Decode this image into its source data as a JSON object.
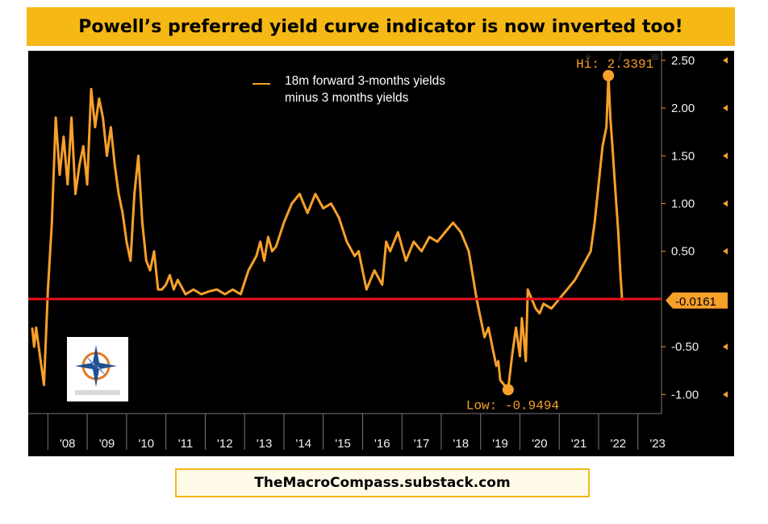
{
  "title": "Powell’s preferred yield curve indicator is now inverted too!",
  "footer": "TheMacroCompass.substack.com",
  "colors": {
    "banner": "#f5b815",
    "line": "#f7a02a",
    "zero_line": "#e8101c",
    "background": "#000000"
  },
  "chart_data": {
    "type": "line",
    "title": "Powell’s preferred yield curve indicator is now inverted too!",
    "xlabel": "",
    "ylabel": "",
    "xlim": [
      2007.5,
      2023.6
    ],
    "ylim": [
      -1.2,
      2.6
    ],
    "x_tick_labels": [
      "'08",
      "'09",
      "'10",
      "'11",
      "'12",
      "'13",
      "'14",
      "'15",
      "'16",
      "'17",
      "'18",
      "'19",
      "'20",
      "'21",
      "'22",
      "'23"
    ],
    "y_ticks": [
      2.5,
      2.0,
      1.5,
      1.0,
      0.5,
      -0.5,
      -1.0
    ],
    "y_tick_labels": [
      "2.50",
      "2.00",
      "1.50",
      "1.00",
      "0.50",
      "-0.50",
      "-1.00"
    ],
    "last_value_label": "-0.0161",
    "hi_label": "Hi: 2.3391",
    "low_label": "Low: -0.9494",
    "horizontal_line": {
      "y": 0,
      "color": "#e8101c"
    },
    "grid": false,
    "legend_position": "top-left",
    "series": [
      {
        "name": "18m forward 3-months yields\nminus 3 months yields",
        "color": "#f7a02a",
        "x": [
          2007.6,
          2007.65,
          2007.7,
          2007.8,
          2007.9,
          2008.0,
          2008.1,
          2008.2,
          2008.3,
          2008.4,
          2008.5,
          2008.6,
          2008.7,
          2008.8,
          2008.9,
          2009.0,
          2009.1,
          2009.2,
          2009.3,
          2009.4,
          2009.5,
          2009.6,
          2009.7,
          2009.8,
          2009.9,
          2010.0,
          2010.1,
          2010.2,
          2010.3,
          2010.4,
          2010.5,
          2010.6,
          2010.7,
          2010.8,
          2010.9,
          2011.0,
          2011.1,
          2011.2,
          2011.3,
          2011.5,
          2011.7,
          2011.9,
          2012.1,
          2012.3,
          2012.5,
          2012.7,
          2012.9,
          2013.1,
          2013.3,
          2013.4,
          2013.5,
          2013.6,
          2013.7,
          2013.8,
          2014.0,
          2014.2,
          2014.4,
          2014.6,
          2014.8,
          2015.0,
          2015.2,
          2015.4,
          2015.6,
          2015.8,
          2015.9,
          2016.0,
          2016.1,
          2016.3,
          2016.5,
          2016.6,
          2016.7,
          2016.9,
          2017.1,
          2017.3,
          2017.5,
          2017.7,
          2017.9,
          2018.1,
          2018.3,
          2018.5,
          2018.7,
          2018.9,
          2019.0,
          2019.1,
          2019.2,
          2019.3,
          2019.4,
          2019.45,
          2019.5,
          2019.6,
          2019.7,
          2019.8,
          2019.9,
          2020.0,
          2020.05,
          2020.1,
          2020.15,
          2020.2,
          2020.3,
          2020.4,
          2020.5,
          2020.6,
          2020.8,
          2021.0,
          2021.2,
          2021.4,
          2021.6,
          2021.8,
          2021.9,
          2022.0,
          2022.1,
          2022.2,
          2022.25,
          2022.3,
          2022.35,
          2022.4,
          2022.45,
          2022.5,
          2022.55,
          2022.6
        ],
        "values": [
          -0.3,
          -0.5,
          -0.3,
          -0.6,
          -0.9,
          0.1,
          0.8,
          1.9,
          1.3,
          1.7,
          1.2,
          1.9,
          1.1,
          1.4,
          1.6,
          1.2,
          2.2,
          1.8,
          2.1,
          1.9,
          1.5,
          1.8,
          1.4,
          1.1,
          0.9,
          0.6,
          0.4,
          1.1,
          1.5,
          0.8,
          0.4,
          0.3,
          0.5,
          0.1,
          0.1,
          0.15,
          0.25,
          0.1,
          0.2,
          0.05,
          0.1,
          0.05,
          0.08,
          0.1,
          0.05,
          0.1,
          0.05,
          0.3,
          0.45,
          0.6,
          0.4,
          0.65,
          0.5,
          0.55,
          0.8,
          1.0,
          1.1,
          0.9,
          1.1,
          0.95,
          1.0,
          0.85,
          0.6,
          0.45,
          0.5,
          0.3,
          0.1,
          0.3,
          0.15,
          0.6,
          0.5,
          0.7,
          0.4,
          0.6,
          0.5,
          0.65,
          0.6,
          0.7,
          0.8,
          0.7,
          0.5,
          0.0,
          -0.2,
          -0.4,
          -0.3,
          -0.5,
          -0.7,
          -0.65,
          -0.85,
          -0.9,
          -0.95,
          -0.6,
          -0.3,
          -0.6,
          -0.2,
          -0.4,
          -0.65,
          0.1,
          0.0,
          -0.1,
          -0.15,
          -0.05,
          -0.1,
          0.0,
          0.1,
          0.2,
          0.35,
          0.5,
          0.8,
          1.2,
          1.6,
          1.8,
          2.34,
          1.9,
          1.6,
          1.3,
          1.0,
          0.7,
          0.3,
          -0.0161
        ]
      }
    ]
  }
}
